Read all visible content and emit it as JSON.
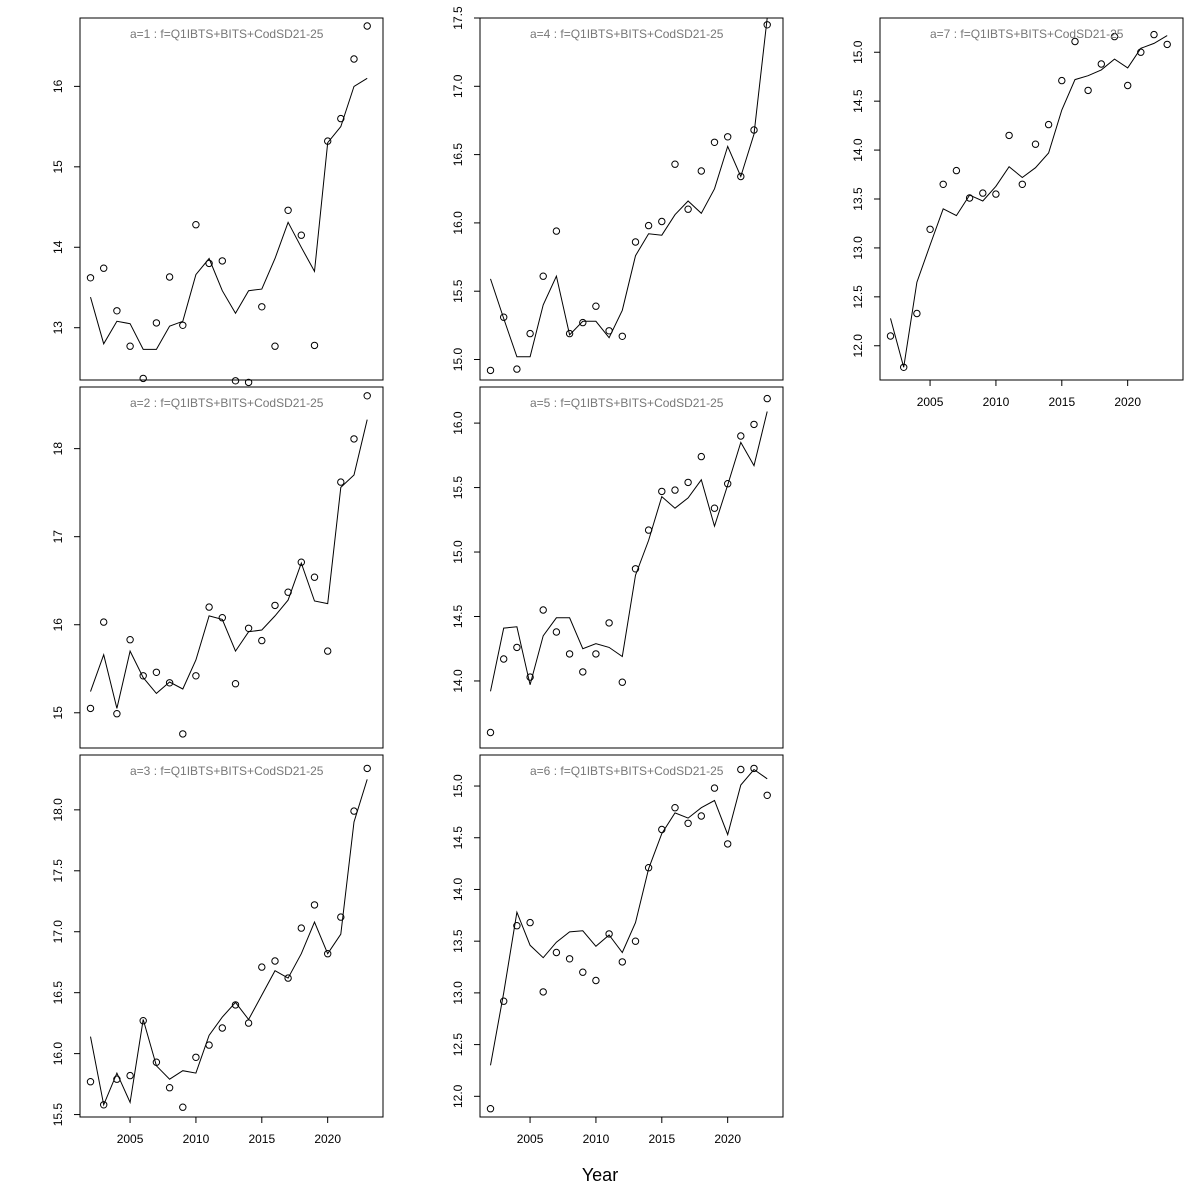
{
  "xlabel": "Year",
  "colors": {
    "line": "#000000",
    "points": "#000000",
    "title": "#777777",
    "frame": "#000000"
  },
  "chart_data": [
    {
      "type": "line",
      "title": "a=1  :  f=Q1IBTS+BITS+CodSD21-25",
      "xlim": [
        2001.2,
        2024.2
      ],
      "ylim": [
        12.35,
        16.85
      ],
      "yticks": [
        13,
        14,
        15,
        16
      ],
      "xticks": [],
      "x": [
        2002,
        2003,
        2004,
        2005,
        2006,
        2007,
        2008,
        2009,
        2010,
        2011,
        2012,
        2013,
        2014,
        2015,
        2016,
        2017,
        2018,
        2019,
        2020,
        2021,
        2022,
        2023
      ],
      "fitted": [
        13.38,
        12.8,
        13.08,
        13.05,
        12.73,
        12.73,
        13.02,
        13.08,
        13.66,
        13.86,
        13.46,
        13.18,
        13.46,
        13.48,
        13.86,
        14.31,
        14.0,
        13.7,
        15.3,
        15.5,
        16.0,
        16.1
      ],
      "observed": [
        13.62,
        13.74,
        13.21,
        12.77,
        12.37,
        13.06,
        13.63,
        13.03,
        14.28,
        13.8,
        13.83,
        12.34,
        12.32,
        13.26,
        12.77,
        14.46,
        14.15,
        12.78,
        15.32,
        15.6,
        16.34,
        16.75
      ]
    },
    {
      "type": "line",
      "title": "a=2  :  f=Q1IBTS+BITS+CodSD21-25",
      "xlim": [
        2001.2,
        2024.2
      ],
      "ylim": [
        14.6,
        18.7
      ],
      "yticks": [
        15,
        16,
        17,
        18
      ],
      "xticks": [],
      "x": [
        2002,
        2003,
        2004,
        2005,
        2006,
        2007,
        2008,
        2009,
        2010,
        2011,
        2012,
        2013,
        2014,
        2015,
        2016,
        2017,
        2018,
        2019,
        2020,
        2021,
        2022,
        2023
      ],
      "fitted": [
        15.24,
        15.66,
        15.05,
        15.7,
        15.4,
        15.22,
        15.35,
        15.27,
        15.6,
        16.1,
        16.06,
        15.7,
        15.92,
        15.94,
        16.1,
        16.28,
        16.7,
        16.27,
        16.24,
        17.56,
        17.7,
        18.33
      ],
      "observed": [
        15.05,
        16.03,
        14.99,
        15.83,
        15.42,
        15.46,
        15.34,
        14.76,
        15.42,
        16.2,
        16.08,
        15.33,
        15.96,
        15.82,
        16.22,
        16.37,
        16.71,
        16.54,
        15.7,
        17.62,
        18.11,
        18.6
      ]
    },
    {
      "type": "line",
      "title": "a=3  :  f=Q1IBTS+BITS+CodSD21-25",
      "xlim": [
        2001.2,
        2024.2
      ],
      "ylim": [
        15.48,
        18.45
      ],
      "yticks": [
        15.5,
        16.0,
        16.5,
        17.0,
        17.5,
        18.0
      ],
      "xticks": [
        2005,
        2010,
        2015,
        2020
      ],
      "x": [
        2002,
        2003,
        2004,
        2005,
        2006,
        2007,
        2008,
        2009,
        2010,
        2011,
        2012,
        2013,
        2014,
        2015,
        2016,
        2017,
        2018,
        2019,
        2020,
        2021,
        2022,
        2023
      ],
      "fitted": [
        16.14,
        15.58,
        15.84,
        15.6,
        16.28,
        15.9,
        15.79,
        15.86,
        15.84,
        16.15,
        16.3,
        16.42,
        16.28,
        16.48,
        16.68,
        16.62,
        16.82,
        17.08,
        16.82,
        16.98,
        17.9,
        18.25
      ],
      "observed": [
        15.77,
        15.58,
        15.79,
        15.82,
        16.27,
        15.93,
        15.72,
        15.56,
        15.97,
        16.07,
        16.21,
        16.4,
        16.25,
        16.71,
        16.76,
        16.62,
        17.03,
        17.22,
        16.82,
        17.12,
        17.99,
        18.34
      ]
    },
    {
      "type": "line",
      "title": "a=4  :  f=Q1IBTS+BITS+CodSD21-25",
      "xlim": [
        2001.2,
        2024.2
      ],
      "ylim": [
        14.85,
        17.5
      ],
      "yticks": [
        15.0,
        15.5,
        16.0,
        16.5,
        17.0,
        17.5
      ],
      "xticks": [],
      "x": [
        2002,
        2003,
        2004,
        2005,
        2006,
        2007,
        2008,
        2009,
        2010,
        2011,
        2012,
        2013,
        2014,
        2015,
        2016,
        2017,
        2018,
        2019,
        2020,
        2021,
        2022,
        2023
      ],
      "fitted": [
        15.59,
        15.3,
        15.02,
        15.02,
        15.4,
        15.61,
        15.18,
        15.28,
        15.28,
        15.16,
        15.36,
        15.76,
        15.92,
        15.91,
        16.06,
        16.16,
        16.07,
        16.25,
        16.56,
        16.34,
        16.65,
        17.5
      ],
      "observed": [
        14.92,
        15.31,
        14.93,
        15.19,
        15.61,
        15.94,
        15.19,
        15.27,
        15.39,
        15.21,
        15.17,
        15.86,
        15.98,
        16.01,
        16.43,
        16.1,
        16.38,
        16.59,
        16.63,
        16.34,
        16.68,
        17.45
      ]
    },
    {
      "type": "line",
      "title": "a=5  :  f=Q1IBTS+BITS+CodSD21-25",
      "xlim": [
        2001.2,
        2024.2
      ],
      "ylim": [
        13.48,
        16.28
      ],
      "yticks": [
        14.0,
        14.5,
        15.0,
        15.5,
        16.0
      ],
      "xticks": [],
      "x": [
        2002,
        2003,
        2004,
        2005,
        2006,
        2007,
        2008,
        2009,
        2010,
        2011,
        2012,
        2013,
        2014,
        2015,
        2016,
        2017,
        2018,
        2019,
        2020,
        2021,
        2022,
        2023
      ],
      "fitted": [
        13.92,
        14.41,
        14.42,
        13.97,
        14.35,
        14.49,
        14.49,
        14.25,
        14.29,
        14.26,
        14.19,
        14.82,
        15.09,
        15.43,
        15.34,
        15.42,
        15.56,
        15.2,
        15.52,
        15.85,
        15.67,
        16.09
      ],
      "observed": [
        13.6,
        14.17,
        14.26,
        14.03,
        14.55,
        14.38,
        14.21,
        14.07,
        14.21,
        14.45,
        13.99,
        14.87,
        15.17,
        15.47,
        15.48,
        15.54,
        15.74,
        15.34,
        15.53,
        15.9,
        15.99,
        16.19
      ]
    },
    {
      "type": "line",
      "title": "a=6  :  f=Q1IBTS+BITS+CodSD21-25",
      "xlim": [
        2001.2,
        2024.2
      ],
      "ylim": [
        11.8,
        15.3
      ],
      "yticks": [
        12.0,
        12.5,
        13.0,
        13.5,
        14.0,
        14.5,
        15.0
      ],
      "xticks": [
        2005,
        2010,
        2015,
        2020
      ],
      "x": [
        2002,
        2003,
        2004,
        2005,
        2006,
        2007,
        2008,
        2009,
        2010,
        2011,
        2012,
        2013,
        2014,
        2015,
        2016,
        2017,
        2018,
        2019,
        2020,
        2021,
        2022,
        2023
      ],
      "fitted": [
        12.3,
        13.0,
        13.78,
        13.46,
        13.34,
        13.49,
        13.59,
        13.6,
        13.45,
        13.56,
        13.39,
        13.68,
        14.2,
        14.54,
        14.74,
        14.69,
        14.79,
        14.86,
        14.53,
        15.01,
        15.16,
        15.07
      ],
      "observed": [
        11.88,
        12.92,
        13.65,
        13.68,
        13.01,
        13.39,
        13.33,
        13.2,
        13.12,
        13.57,
        13.3,
        13.5,
        14.21,
        14.58,
        14.79,
        14.64,
        14.71,
        14.98,
        14.44,
        15.16,
        15.17,
        14.91
      ]
    },
    {
      "type": "line",
      "title": "a=7  :  f=Q1IBTS+BITS+CodSD21-25",
      "xlim": [
        2001.2,
        2024.2
      ],
      "ylim": [
        11.65,
        15.35
      ],
      "yticks": [
        12.0,
        12.5,
        13.0,
        13.5,
        14.0,
        14.5,
        15.0
      ],
      "xticks": [
        2005,
        2010,
        2015,
        2020
      ],
      "x": [
        2002,
        2003,
        2004,
        2005,
        2006,
        2007,
        2008,
        2009,
        2010,
        2011,
        2012,
        2013,
        2014,
        2015,
        2016,
        2017,
        2018,
        2019,
        2020,
        2021,
        2022,
        2023
      ],
      "fitted": [
        12.28,
        11.78,
        12.65,
        13.03,
        13.4,
        13.33,
        13.54,
        13.48,
        13.63,
        13.83,
        13.72,
        13.82,
        13.97,
        14.41,
        14.72,
        14.76,
        14.82,
        14.93,
        14.84,
        15.04,
        15.09,
        15.17
      ],
      "observed": [
        12.1,
        11.78,
        12.33,
        13.19,
        13.65,
        13.79,
        13.51,
        13.56,
        13.55,
        14.15,
        13.65,
        14.06,
        14.26,
        14.71,
        15.11,
        14.61,
        14.88,
        15.16,
        14.66,
        15.0,
        15.18,
        15.08
      ]
    }
  ]
}
